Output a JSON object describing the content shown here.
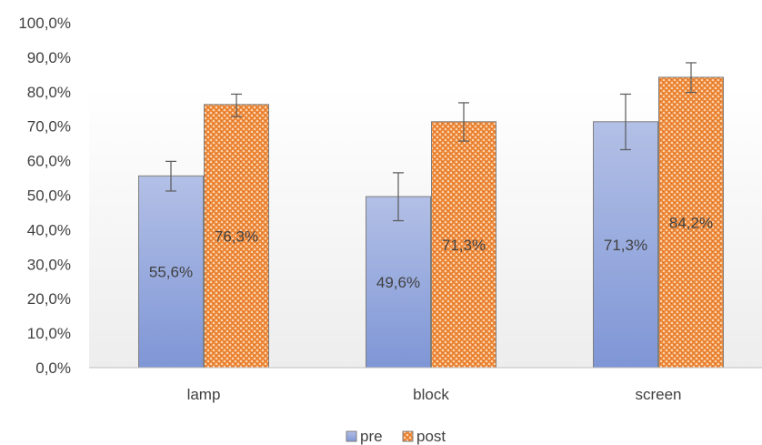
{
  "chart_data": {
    "type": "bar",
    "categories": [
      "lamp",
      "block",
      "screen"
    ],
    "series": [
      {
        "name": "pre",
        "values": [
          55.6,
          49.6,
          71.3
        ],
        "labels": [
          "55,6%",
          "49,6%",
          "71,3%"
        ],
        "error_low": [
          51.2,
          42.6,
          63.2
        ],
        "error_high": [
          59.8,
          56.5,
          79.3
        ],
        "color": "#8fa2d8"
      },
      {
        "name": "post",
        "values": [
          76.3,
          71.3,
          84.2
        ],
        "labels": [
          "76,3%",
          "71,3%",
          "84,2%"
        ],
        "error_low": [
          72.8,
          65.7,
          79.8
        ],
        "error_high": [
          79.3,
          76.8,
          88.4
        ],
        "color": "#ee8c3e"
      }
    ],
    "y_ticks": [
      "0,0%",
      "10,0%",
      "20,0%",
      "30,0%",
      "40,0%",
      "50,0%",
      "60,0%",
      "70,0%",
      "80,0%",
      "90,0%",
      "100,0%"
    ],
    "ylim": [
      0,
      100
    ],
    "grid": false,
    "legend": "bottom"
  }
}
